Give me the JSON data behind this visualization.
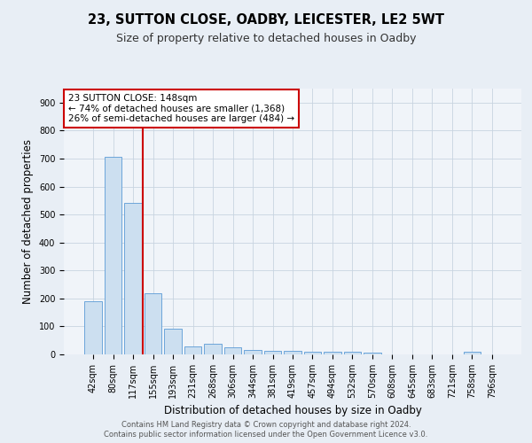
{
  "title": "23, SUTTON CLOSE, OADBY, LEICESTER, LE2 5WT",
  "subtitle": "Size of property relative to detached houses in Oadby",
  "xlabel": "Distribution of detached houses by size in Oadby",
  "ylabel": "Number of detached properties",
  "categories": [
    "42sqm",
    "80sqm",
    "117sqm",
    "155sqm",
    "193sqm",
    "231sqm",
    "268sqm",
    "306sqm",
    "344sqm",
    "381sqm",
    "419sqm",
    "457sqm",
    "494sqm",
    "532sqm",
    "570sqm",
    "608sqm",
    "645sqm",
    "683sqm",
    "721sqm",
    "758sqm",
    "796sqm"
  ],
  "values": [
    190,
    707,
    540,
    220,
    92,
    27,
    37,
    25,
    15,
    13,
    13,
    10,
    10,
    9,
    5,
    0,
    0,
    0,
    0,
    10,
    0
  ],
  "bar_color": "#ccdff0",
  "bar_edge_color": "#5b9bd5",
  "vline_color": "#cc0000",
  "vline_x": 2.5,
  "annotation_line1": "23 SUTTON CLOSE: 148sqm",
  "annotation_line2": "← 74% of detached houses are smaller (1,368)",
  "annotation_line3": "26% of semi-detached houses are larger (484) →",
  "annotation_box_color": "#ffffff",
  "annotation_box_edge_color": "#cc0000",
  "ylim": [
    0,
    950
  ],
  "yticks": [
    0,
    100,
    200,
    300,
    400,
    500,
    600,
    700,
    800,
    900
  ],
  "footer1": "Contains HM Land Registry data © Crown copyright and database right 2024.",
  "footer2": "Contains public sector information licensed under the Open Government Licence v3.0.",
  "bg_color": "#e8eef5",
  "plot_bg_color": "#f0f4f9",
  "grid_color": "#c8d4e0",
  "title_fontsize": 10.5,
  "subtitle_fontsize": 9,
  "tick_fontsize": 7,
  "ylabel_fontsize": 8.5,
  "xlabel_fontsize": 8.5,
  "footer_fontsize": 6,
  "annot_fontsize": 7.5
}
